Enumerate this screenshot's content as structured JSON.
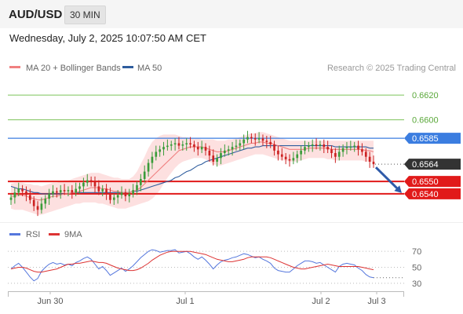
{
  "header": {
    "pair": "AUD/USD",
    "timeframe": "30 MIN",
    "datetime": "Wednesday, July 2, 2025 10:07:50 AM CET"
  },
  "legend": {
    "ma20_bb": "MA 20 + Bollinger Bands",
    "ma50": "MA 50",
    "credit": "Research © 2025 Trading Central",
    "rsi": "RSI",
    "rsi_ma": "9MA"
  },
  "colors": {
    "ma20": "#f08080",
    "ma50": "#2f5d9e",
    "bollinger_fill": "#fde0e0",
    "green_level": "#7cc35a",
    "blue_level": "#3b7de0",
    "red_level": "#e11a1a",
    "candle_up": "#3a9c3a",
    "candle_down": "#cc2222",
    "rsi": "#5577dd",
    "rsi_ma": "#dd3333",
    "arrow": "#2f5aa8",
    "current_price_bg": "#333333"
  },
  "chart_data": [
    {
      "type": "candlestick",
      "timeframe": "30 MIN",
      "x_ticks": [
        "Jun 30",
        "Jul 1",
        "Jul 2",
        "Jul 3"
      ],
      "ylim": [
        0.6517,
        0.6636
      ],
      "levels": [
        {
          "price": "0.6620",
          "value": 0.662,
          "kind": "resistance"
        },
        {
          "price": "0.6600",
          "value": 0.66,
          "kind": "resistance"
        },
        {
          "price": "0.6585",
          "value": 0.6585,
          "kind": "pivot"
        },
        {
          "price": "0.6564",
          "value": 0.6564,
          "kind": "current"
        },
        {
          "price": "0.6550",
          "value": 0.655,
          "kind": "target"
        },
        {
          "price": "0.6540",
          "value": 0.654,
          "kind": "target"
        }
      ],
      "close_series": [
        0.6537,
        0.6541,
        0.6544,
        0.6542,
        0.6539,
        0.6535,
        0.653,
        0.6527,
        0.6532,
        0.6536,
        0.654,
        0.6542,
        0.6541,
        0.6543,
        0.6542,
        0.6543,
        0.6541,
        0.6544,
        0.6546,
        0.6549,
        0.6551,
        0.655,
        0.6546,
        0.6542,
        0.6544,
        0.654,
        0.6535,
        0.6537,
        0.6539,
        0.6541,
        0.6538,
        0.654,
        0.6543,
        0.6547,
        0.6552,
        0.6558,
        0.6565,
        0.657,
        0.6574,
        0.6576,
        0.6578,
        0.6579,
        0.658,
        0.6581,
        0.6579,
        0.658,
        0.6581,
        0.658,
        0.6578,
        0.6576,
        0.6578,
        0.6575,
        0.6571,
        0.6566,
        0.6569,
        0.6573,
        0.6575,
        0.6576,
        0.6578,
        0.6579,
        0.6581,
        0.6584,
        0.6586,
        0.6585,
        0.6584,
        0.6585,
        0.6583,
        0.6582,
        0.658,
        0.6575,
        0.6572,
        0.657,
        0.6568,
        0.6567,
        0.6569,
        0.6572,
        0.6575,
        0.6578,
        0.6579,
        0.658,
        0.6579,
        0.658,
        0.6578,
        0.6576,
        0.6573,
        0.657,
        0.6574,
        0.6577,
        0.6578,
        0.6578,
        0.6579,
        0.6576,
        0.6574,
        0.657,
        0.6566,
        0.6564
      ],
      "ma20": [
        0.6538,
        0.6538,
        0.6539,
        0.6539,
        0.6538,
        0.6537,
        0.6536,
        0.6535,
        0.6535,
        0.6536,
        0.6537,
        0.6538,
        0.6538,
        0.6539,
        0.654,
        0.654,
        0.6541,
        0.6541,
        0.6542,
        0.6543,
        0.6544,
        0.6545,
        0.6545,
        0.6545,
        0.6544,
        0.6544,
        0.6543,
        0.6542,
        0.6542,
        0.6541,
        0.6541,
        0.6541,
        0.6542,
        0.6543,
        0.6545,
        0.6548,
        0.6551,
        0.6554,
        0.6557,
        0.656,
        0.6563,
        0.6566,
        0.6569,
        0.6572,
        0.6575,
        0.6576,
        0.6577,
        0.6578,
        0.6578,
        0.6578,
        0.6578,
        0.6577,
        0.6576,
        0.6575,
        0.6574,
        0.6574,
        0.6574,
        0.6575,
        0.6576,
        0.6577,
        0.6578,
        0.6579,
        0.658,
        0.6581,
        0.6581,
        0.6582,
        0.6582,
        0.6581,
        0.6581,
        0.658,
        0.6579,
        0.6578,
        0.6577,
        0.6576,
        0.6576,
        0.6576,
        0.6576,
        0.6576,
        0.6577,
        0.6577,
        0.6577,
        0.6577,
        0.6577,
        0.6577,
        0.6576,
        0.6576,
        0.6576,
        0.6576,
        0.6576,
        0.6576,
        0.6576,
        0.6576,
        0.6576,
        0.6575,
        0.6575,
        0.6574
      ],
      "ma50": [
        0.6546,
        0.6545,
        0.6544,
        0.6544,
        0.6543,
        0.6542,
        0.6541,
        0.6541,
        0.654,
        0.654,
        0.654,
        0.654,
        0.654,
        0.654,
        0.654,
        0.654,
        0.6541,
        0.6541,
        0.6541,
        0.6541,
        0.6541,
        0.6541,
        0.6541,
        0.6541,
        0.6541,
        0.6541,
        0.6541,
        0.6541,
        0.6541,
        0.6541,
        0.6541,
        0.6541,
        0.6542,
        0.6542,
        0.6543,
        0.6544,
        0.6545,
        0.6546,
        0.6547,
        0.6548,
        0.6549,
        0.655,
        0.6551,
        0.6553,
        0.6554,
        0.6556,
        0.6558,
        0.6559,
        0.6561,
        0.6563,
        0.6564,
        0.6566,
        0.6567,
        0.6568,
        0.6569,
        0.657,
        0.6571,
        0.6572,
        0.6573,
        0.6574,
        0.6575,
        0.6576,
        0.6577,
        0.6577,
        0.6578,
        0.6578,
        0.6579,
        0.6579,
        0.6579,
        0.6579,
        0.6579,
        0.6579,
        0.6579,
        0.6579,
        0.6579,
        0.6579,
        0.6579,
        0.6579,
        0.6579,
        0.6579,
        0.6579,
        0.6579,
        0.6579,
        0.6579,
        0.6579,
        0.6578,
        0.6578,
        0.6578,
        0.6578,
        0.6578,
        0.6578,
        0.6578,
        0.6578,
        0.6578,
        0.6577,
        0.6577
      ],
      "bollinger_upper": [
        0.6548,
        0.6549,
        0.6549,
        0.6549,
        0.6548,
        0.6548,
        0.6547,
        0.6547,
        0.6546,
        0.6547,
        0.6548,
        0.6549,
        0.6549,
        0.655,
        0.6551,
        0.6551,
        0.6552,
        0.6553,
        0.6554,
        0.6555,
        0.6556,
        0.6557,
        0.6557,
        0.6557,
        0.6556,
        0.6555,
        0.6554,
        0.6553,
        0.6553,
        0.6552,
        0.6552,
        0.6552,
        0.6554,
        0.6558,
        0.6564,
        0.657,
        0.6577,
        0.6582,
        0.6585,
        0.6587,
        0.6588,
        0.6588,
        0.6588,
        0.6588,
        0.6587,
        0.6586,
        0.6586,
        0.6585,
        0.6585,
        0.6585,
        0.6584,
        0.6584,
        0.6584,
        0.6584,
        0.6583,
        0.6583,
        0.6583,
        0.6584,
        0.6584,
        0.6585,
        0.6586,
        0.6587,
        0.6588,
        0.6589,
        0.6589,
        0.659,
        0.659,
        0.6589,
        0.6588,
        0.6587,
        0.6586,
        0.6585,
        0.6584,
        0.6583,
        0.6583,
        0.6583,
        0.6583,
        0.6583,
        0.6583,
        0.6583,
        0.6583,
        0.6583,
        0.6583,
        0.6583,
        0.6583,
        0.6583,
        0.6583,
        0.6583,
        0.6583,
        0.6583,
        0.6583,
        0.6583,
        0.6583,
        0.6583,
        0.6583,
        0.6583
      ],
      "bollinger_lower": [
        0.6528,
        0.6527,
        0.6527,
        0.6527,
        0.6526,
        0.6525,
        0.6524,
        0.6523,
        0.6523,
        0.6524,
        0.6525,
        0.6526,
        0.6527,
        0.6528,
        0.6529,
        0.653,
        0.6531,
        0.6532,
        0.6532,
        0.6533,
        0.6533,
        0.6533,
        0.6533,
        0.6532,
        0.6532,
        0.6531,
        0.653,
        0.6529,
        0.6528,
        0.6528,
        0.6528,
        0.6529,
        0.653,
        0.6531,
        0.6532,
        0.6533,
        0.6534,
        0.6536,
        0.6539,
        0.6543,
        0.6548,
        0.6553,
        0.6557,
        0.6561,
        0.6564,
        0.6566,
        0.6567,
        0.6568,
        0.6569,
        0.6569,
        0.6569,
        0.6568,
        0.6566,
        0.6564,
        0.6563,
        0.6563,
        0.6564,
        0.6565,
        0.6566,
        0.6567,
        0.6568,
        0.6569,
        0.657,
        0.6571,
        0.6572,
        0.6572,
        0.6572,
        0.6571,
        0.657,
        0.6569,
        0.6568,
        0.6567,
        0.6567,
        0.6566,
        0.6566,
        0.6566,
        0.6567,
        0.6568,
        0.6569,
        0.6569,
        0.6569,
        0.6569,
        0.6569,
        0.6568,
        0.6568,
        0.6567,
        0.6567,
        0.6567,
        0.6567,
        0.6567,
        0.6567,
        0.6567,
        0.6567,
        0.6566,
        0.6566,
        0.6566
      ],
      "projection": {
        "from": 0.6564,
        "to": 0.654,
        "label": "bearish target"
      }
    },
    {
      "type": "line",
      "name": "RSI",
      "ylim": [
        25,
        78
      ],
      "y_ticks": [
        70,
        50,
        30
      ],
      "x_ticks": [
        "Jun 30",
        "Jul 1",
        "Jul 2",
        "Jul 3"
      ],
      "series": [
        {
          "name": "RSI",
          "values": [
            48,
            52,
            55,
            50,
            44,
            38,
            33,
            36,
            45,
            50,
            54,
            56,
            54,
            55,
            53,
            54,
            52,
            56,
            58,
            61,
            63,
            60,
            54,
            48,
            51,
            46,
            40,
            43,
            46,
            49,
            45,
            48,
            52,
            57,
            62,
            66,
            70,
            72,
            71,
            69,
            70,
            71,
            71,
            72,
            68,
            69,
            70,
            67,
            63,
            60,
            63,
            59,
            54,
            48,
            53,
            57,
            59,
            60,
            62,
            63,
            65,
            67,
            66,
            64,
            62,
            63,
            60,
            58,
            55,
            49,
            46,
            45,
            44,
            44,
            48,
            52,
            55,
            58,
            58,
            57,
            55,
            56,
            53,
            50,
            47,
            44,
            51,
            54,
            55,
            54,
            53,
            49,
            46,
            41,
            38,
            37
          ]
        },
        {
          "name": "9MA",
          "values": [
            48,
            49,
            50,
            50,
            49,
            47,
            45,
            44,
            44,
            45,
            46,
            47,
            48,
            50,
            52,
            54,
            54,
            55,
            55,
            56,
            57,
            58,
            57,
            56,
            56,
            55,
            53,
            51,
            49,
            48,
            47,
            46,
            46,
            47,
            49,
            52,
            55,
            59,
            62,
            65,
            67,
            69,
            70,
            70,
            70,
            70,
            70,
            70,
            69,
            68,
            67,
            66,
            64,
            62,
            60,
            59,
            58,
            57,
            57,
            58,
            59,
            60,
            62,
            63,
            63,
            63,
            63,
            63,
            62,
            60,
            58,
            56,
            54,
            52,
            50,
            49,
            48,
            48,
            49,
            50,
            51,
            52,
            53,
            54,
            53,
            52,
            51,
            51,
            51,
            51,
            51,
            51,
            50,
            49,
            48,
            47
          ]
        }
      ]
    }
  ]
}
